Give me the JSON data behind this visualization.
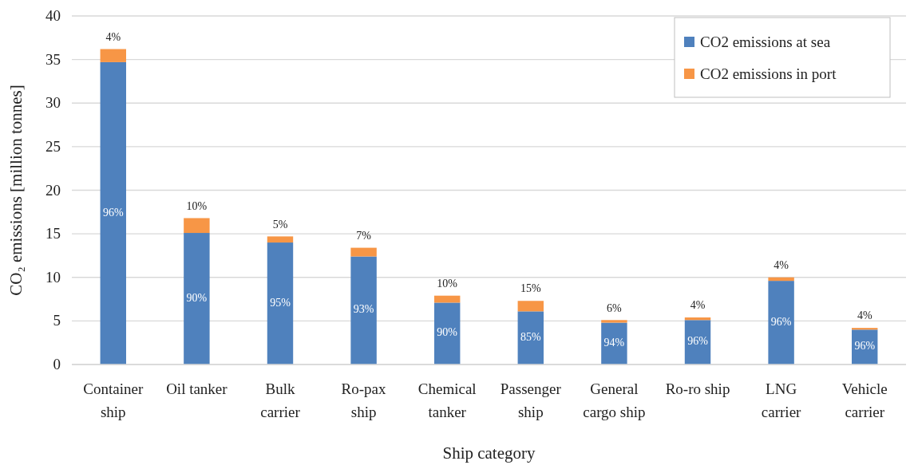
{
  "chart_data": {
    "type": "bar",
    "stacked": true,
    "xlabel": "Ship category",
    "ylabel": "CO₂ emissions [million tonnes]",
    "categories": [
      "Container ship",
      "Oil tanker",
      "Bulk carrier",
      "Ro-pax ship",
      "Chemical tanker",
      "Passenger ship",
      "General cargo ship",
      "Ro-ro ship",
      "LNG carrier",
      "Vehicle carrier"
    ],
    "series": [
      {
        "name": "CO2 emissions at sea",
        "color": "#4f81bd",
        "values": [
          34.7,
          15.1,
          14.0,
          12.4,
          7.1,
          6.1,
          4.8,
          5.1,
          9.6,
          4.0
        ]
      },
      {
        "name": "CO2 emissions in port",
        "color": "#f79646",
        "values": [
          1.5,
          1.7,
          0.7,
          1.0,
          0.8,
          1.2,
          0.3,
          0.3,
          0.4,
          0.2
        ]
      }
    ],
    "annotations": [
      "96%",
      "90%",
      "95%",
      "93%",
      "90%",
      "85%",
      "94%",
      "96%",
      "96%",
      "96%",
      "4%",
      "10%",
      "5%",
      "7%",
      "10%",
      "15%",
      "6%",
      "4%",
      "4%",
      "4%"
    ],
    "ylim": [
      0,
      40
    ],
    "yticks": [
      0,
      5,
      10,
      15,
      20,
      25,
      30,
      35,
      40
    ],
    "grid": "y",
    "legend": "top right"
  }
}
